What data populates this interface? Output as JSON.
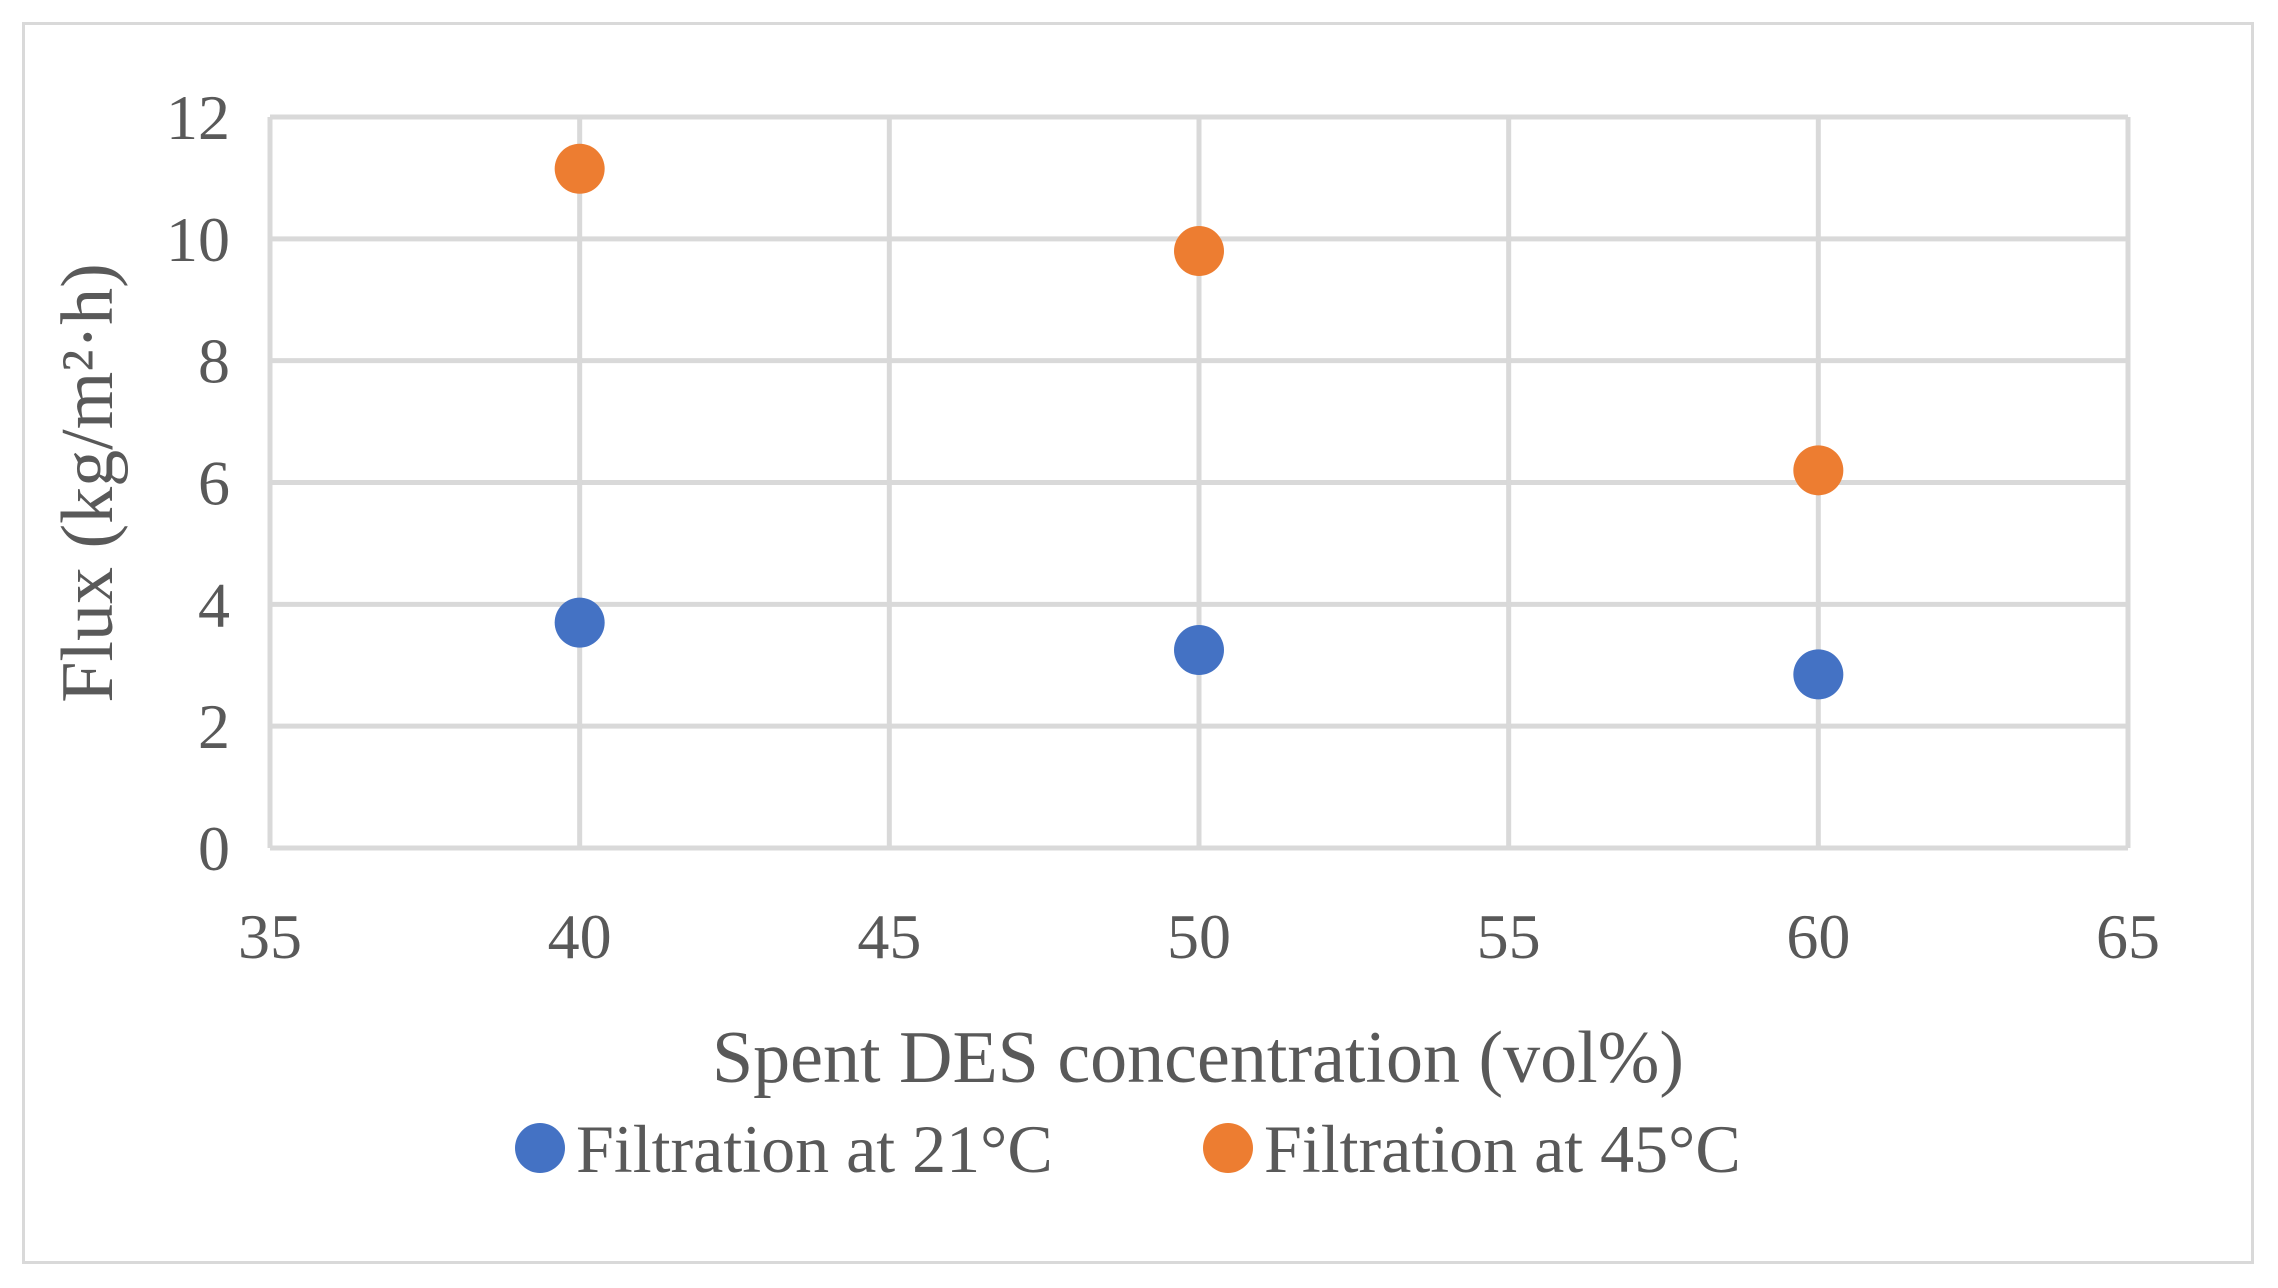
{
  "chart_data": {
    "type": "scatter",
    "title": "",
    "xlabel": "Spent DES concentration (vol%)",
    "ylabel": "Flux (kg/m²·h)",
    "xlim": [
      35,
      65
    ],
    "ylim": [
      0,
      12
    ],
    "xticks": [
      35,
      40,
      45,
      50,
      55,
      60,
      65
    ],
    "yticks": [
      0,
      2,
      4,
      6,
      8,
      10,
      12
    ],
    "grid": true,
    "legend_position": "bottom",
    "series": [
      {
        "name": "Filtration at 21°C",
        "color": "#4472c4",
        "points": [
          {
            "x": 40,
            "y": 3.7
          },
          {
            "x": 50,
            "y": 3.25
          },
          {
            "x": 60,
            "y": 2.85
          }
        ]
      },
      {
        "name": "Filtration at 45°C",
        "color": "#ed7d31",
        "points": [
          {
            "x": 40,
            "y": 11.15
          },
          {
            "x": 50,
            "y": 9.8
          },
          {
            "x": 60,
            "y": 6.2
          }
        ]
      }
    ]
  }
}
